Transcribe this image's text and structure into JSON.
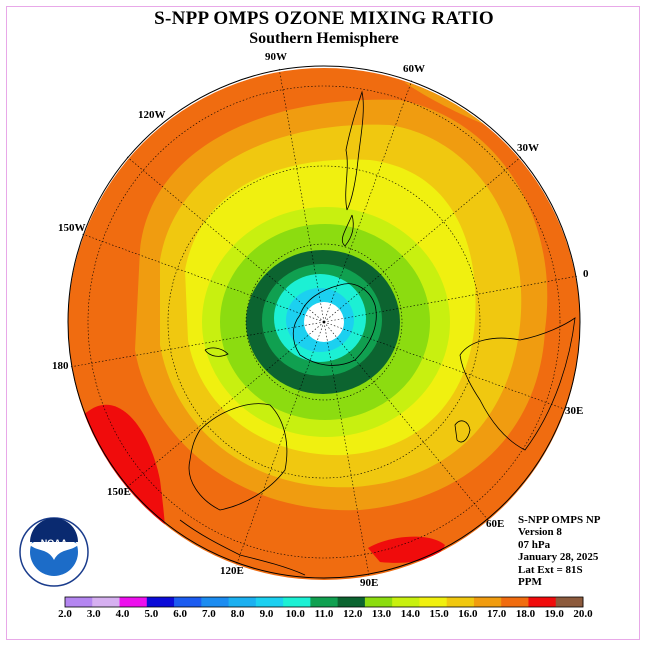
{
  "title": "S-NPP OMPS OZONE MIXING RATIO",
  "subtitle": "Southern Hemisphere",
  "longitude_labels": [
    "90W",
    "60W",
    "120W",
    "30W",
    "150W",
    "0",
    "180",
    "30E",
    "150E",
    "60E",
    "120E",
    "90E"
  ],
  "info": {
    "product": "S-NPP OMPS NP",
    "version": "Version 8",
    "pressure": "07 hPa",
    "date": "January 28, 2025",
    "lat_ext": "Lat Ext = 81S",
    "units": "PPM"
  },
  "logo": {
    "text": "NOAA",
    "ring_text": "NATIONAL OCEANIC AND ATMOSPHERIC ADMINISTRATION · U.S. DEPARTMENT OF COMMERCE"
  },
  "colorbar": {
    "ticks": [
      "2.0",
      "3.0",
      "4.0",
      "5.0",
      "6.0",
      "7.0",
      "8.0",
      "9.0",
      "10.0",
      "11.0",
      "12.0",
      "13.0",
      "14.0",
      "15.0",
      "16.0",
      "17.0",
      "18.0",
      "19.0",
      "20.0"
    ],
    "colors": [
      "#b486f0",
      "#d6b0f0",
      "#ee10ee",
      "#0c0cd8",
      "#1c5cf0",
      "#1c8cf0",
      "#1cb0f0",
      "#1cd0f0",
      "#1cf0d4",
      "#10a050",
      "#0c6430",
      "#8cdc10",
      "#c8f010",
      "#f0f010",
      "#f0c810",
      "#f09c10",
      "#f06c10",
      "#f00c0c",
      "#8c5a3c"
    ]
  },
  "chart_data": {
    "type": "heatmap",
    "projection": "south polar stereographic",
    "variable": "ozone mixing ratio",
    "units": "PPM",
    "pressure_level": "07 hPa",
    "date": "January 28, 2025",
    "scale_min": 2.0,
    "scale_max": 20.0,
    "contour_step": 1.0,
    "center_value_bin": "10.0-11.0",
    "edge_value_bin": "17.0-18.0",
    "max_patches_bin": "18.0-19.0"
  }
}
